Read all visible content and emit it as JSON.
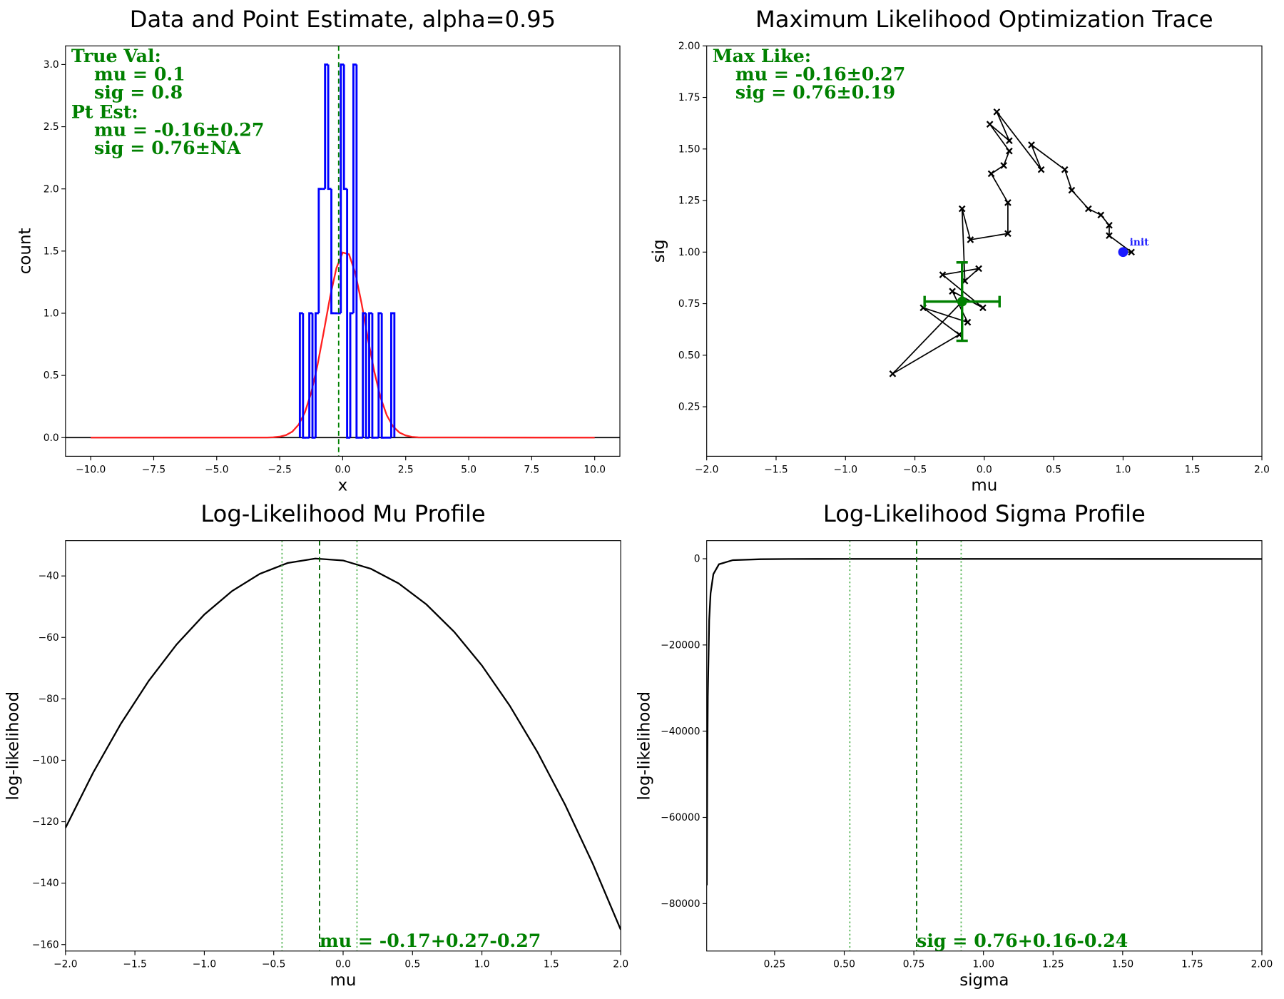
{
  "chart_data": [
    {
      "type": "histogram",
      "title": "Data and Point Estimate, alpha=0.95",
      "xlabel": "x",
      "ylabel": "count",
      "bins": [
        -1.7,
        -1.575,
        -1.45,
        -1.325,
        -1.2,
        -1.075,
        -0.95,
        -0.825,
        -0.7,
        -0.575,
        -0.45,
        -0.325,
        -0.2,
        -0.075,
        0.05,
        0.175,
        0.3,
        0.425,
        0.55,
        0.675,
        0.8,
        0.925,
        1.05,
        1.175,
        1.3,
        1.425,
        1.55,
        1.675,
        1.8,
        1.925,
        2.05
      ],
      "counts": [
        1,
        0,
        0,
        1,
        0,
        1,
        2,
        2,
        3,
        2,
        1,
        1,
        1,
        3,
        2,
        0,
        1,
        3,
        0,
        0,
        1,
        0,
        1,
        0,
        0,
        1,
        0,
        0,
        0,
        1
      ],
      "color": "#0000ff",
      "curve": {
        "color": "#ff2020",
        "x": [
          -10,
          -3,
          -2.75,
          -2.5,
          -2.25,
          -2,
          -1.75,
          -1.5,
          -1.25,
          -1,
          -0.75,
          -0.5,
          -0.25,
          0,
          0.25,
          0.5,
          0.75,
          1,
          1.25,
          1.5,
          1.75,
          2,
          2.25,
          2.5,
          2.75,
          3,
          10
        ],
        "y": [
          0,
          0.0008,
          0.0026,
          0.0076,
          0.02,
          0.048,
          0.104,
          0.203,
          0.361,
          0.583,
          0.853,
          1.132,
          1.363,
          1.488,
          1.474,
          1.324,
          1.078,
          0.797,
          0.534,
          0.324,
          0.179,
          0.089,
          0.041,
          0.017,
          0.006,
          0.002,
          0
        ]
      },
      "vlines": [
        {
          "x": -0.16,
          "style": "dashed",
          "color": "#008000"
        }
      ],
      "hlines": [
        {
          "y": 0,
          "color": "#000000"
        }
      ],
      "annotation": [
        {
          "heading": "True Val:",
          "lines": [
            "mu = 0.1",
            "sig = 0.8"
          ]
        },
        {
          "heading": "Pt Est:",
          "lines": [
            "mu = -0.16±0.27",
            "sig = 0.76±NA"
          ]
        }
      ],
      "annotation_color": "#008000",
      "xlim": [
        -11,
        11
      ],
      "xticks": [
        {
          "value": -10,
          "label": "−10.0"
        },
        {
          "value": -7.5,
          "label": "−7.5"
        },
        {
          "value": -5,
          "label": "−5.0"
        },
        {
          "value": -2.5,
          "label": "−2.5"
        },
        {
          "value": 0,
          "label": "0.0"
        },
        2.5,
        {
          "value": 5,
          "label": "5.0"
        },
        7.5,
        {
          "value": 10,
          "label": "10.0"
        }
      ],
      "ylim": [
        -0.15,
        3.15
      ],
      "yticks": [
        {
          "value": 0,
          "label": "0.0"
        },
        0.5,
        {
          "value": 1,
          "label": "1.0"
        },
        1.5,
        {
          "value": 2,
          "label": "2.0"
        },
        2.5,
        {
          "value": 3,
          "label": "3.0"
        }
      ]
    },
    {
      "type": "scatter",
      "title": "Maximum Likelihood Optimization Trace",
      "xlabel": "mu",
      "ylabel": "sig",
      "x": [
        1.0,
        1.06,
        0.9,
        0.9,
        0.84,
        0.75,
        0.63,
        0.58,
        0.34,
        0.41,
        0.09,
        0.18,
        0.04,
        0.18,
        0.14,
        0.05,
        0.17,
        0.17,
        -0.1,
        -0.16,
        -0.14,
        -0.04,
        -0.3,
        -0.01,
        -0.23,
        -0.12,
        -0.44,
        -0.18,
        -0.66,
        -0.16
      ],
      "y": [
        1.0,
        1.0,
        1.08,
        1.13,
        1.18,
        1.21,
        1.3,
        1.4,
        1.52,
        1.4,
        1.68,
        1.54,
        1.62,
        1.49,
        1.42,
        1.38,
        1.24,
        1.09,
        1.06,
        1.21,
        0.86,
        0.92,
        0.89,
        0.73,
        0.81,
        0.66,
        0.73,
        0.6,
        0.41,
        0.76
      ],
      "color": "#000000",
      "init": {
        "label": "init",
        "x": 1.0,
        "y": 1.0,
        "color": "#1a1aff"
      },
      "estimate": {
        "x": -0.16,
        "y": 0.76,
        "xerr": 0.27,
        "yerr": 0.19,
        "color": "#008000"
      },
      "annotation": [
        {
          "heading": "Max Like:",
          "lines": [
            "mu = -0.16±0.27",
            "sig = 0.76±0.19"
          ]
        }
      ],
      "annotation_color": "#008000",
      "xlim": [
        -2,
        2
      ],
      "xticks": [
        {
          "value": -2,
          "label": "−2.0"
        },
        {
          "value": -1.5,
          "label": "−1.5"
        },
        {
          "value": -1,
          "label": "−1.0"
        },
        {
          "value": -0.5,
          "label": "−0.5"
        },
        {
          "value": 0,
          "label": "0.0"
        },
        0.5,
        {
          "value": 1,
          "label": "1.0"
        },
        1.5,
        {
          "value": 2,
          "label": "2.0"
        }
      ],
      "ylim": [
        0.01,
        2.0
      ],
      "yticks": [
        0.25,
        {
          "value": 0.5,
          "label": "0.50"
        },
        0.75,
        {
          "value": 1,
          "label": "1.00"
        },
        1.25,
        {
          "value": 1.5,
          "label": "1.50"
        },
        1.75,
        {
          "value": 2,
          "label": "2.00"
        }
      ]
    },
    {
      "type": "line",
      "title": "Log-Likelihood Mu Profile",
      "xlabel": "mu",
      "ylabel": "log-likelihood",
      "x": [
        -2,
        -1.8,
        -1.6,
        -1.4,
        -1.2,
        -1,
        -0.8,
        -0.6,
        -0.4,
        -0.2,
        0,
        0.2,
        0.4,
        0.6,
        0.8,
        1,
        1.2,
        1.4,
        1.6,
        1.8,
        2
      ],
      "values": [
        -121.99,
        -103.96,
        -88.01,
        -74.12,
        -62.31,
        -52.57,
        -44.91,
        -39.31,
        -35.79,
        -34.34,
        -34.96,
        -37.66,
        -42.42,
        -49.26,
        -58.17,
        -69.15,
        -82.2,
        -97.33,
        -114.53,
        -133.8,
        -155.14
      ],
      "color": "#000000",
      "vlines": [
        {
          "x": -0.17,
          "style": "dashed",
          "color": "#006400"
        },
        {
          "x": -0.44,
          "style": "dotted",
          "color": "#5cb85c"
        },
        {
          "x": 0.1,
          "style": "dotted",
          "color": "#5cb85c"
        }
      ],
      "annotation_text": "mu = -0.17+0.27-0.27",
      "annotation_color": "#008000",
      "xlim": [
        -2,
        2
      ],
      "xticks": [
        {
          "value": -2,
          "label": "−2.0"
        },
        {
          "value": -1.5,
          "label": "−1.5"
        },
        {
          "value": -1,
          "label": "−1.0"
        },
        {
          "value": -0.5,
          "label": "−0.5"
        },
        {
          "value": 0,
          "label": "0.0"
        },
        0.5,
        {
          "value": 1,
          "label": "1.0"
        },
        1.5,
        {
          "value": 2,
          "label": "2.0"
        }
      ],
      "ylim": [
        -162.1,
        -28.5
      ],
      "yticks": [
        {
          "value": -160,
          "label": "−160"
        },
        {
          "value": -140,
          "label": "−140"
        },
        {
          "value": -120,
          "label": "−120"
        },
        {
          "value": -100,
          "label": "−100"
        },
        {
          "value": -80,
          "label": "−80"
        },
        {
          "value": -60,
          "label": "−60"
        },
        {
          "value": -40,
          "label": "−40"
        }
      ]
    },
    {
      "type": "line",
      "title": "Log-Likelihood Sigma Profile",
      "xlabel": "sigma",
      "ylabel": "log-likelihood",
      "x": [
        0.0065,
        0.007,
        0.008,
        0.01,
        0.015,
        0.02,
        0.03,
        0.05,
        0.1,
        0.2,
        0.3,
        0.5,
        0.76,
        1.0,
        1.5,
        2.0
      ],
      "values": [
        -75740,
        -65306,
        -50000,
        -32000,
        -14222,
        -8000,
        -3556,
        -1280,
        -320,
        -110,
        -60,
        -42,
        -34,
        -37,
        -45,
        -52
      ],
      "color": "#000000",
      "vlines": [
        {
          "x": 0.76,
          "style": "dashed",
          "color": "#006400"
        },
        {
          "x": 0.52,
          "style": "dotted",
          "color": "#5cb85c"
        },
        {
          "x": 0.92,
          "style": "dotted",
          "color": "#5cb85c"
        }
      ],
      "annotation_text": "sig = 0.76+0.16-0.24",
      "annotation_color": "#008000",
      "xlim": [
        0.006,
        2.0
      ],
      "xticks": [
        0.25,
        {
          "value": 0.5,
          "label": "0.50"
        },
        0.75,
        {
          "value": 1,
          "label": "1.00"
        },
        1.25,
        {
          "value": 1.5,
          "label": "1.50"
        },
        1.75,
        {
          "value": 2,
          "label": "2.00"
        }
      ],
      "ylim": [
        -91000,
        4200
      ],
      "yticks": [
        {
          "value": -80000,
          "label": "−80000"
        },
        {
          "value": -60000,
          "label": "−60000"
        },
        {
          "value": -40000,
          "label": "−40000"
        },
        {
          "value": -20000,
          "label": "−20000"
        },
        0
      ]
    }
  ]
}
